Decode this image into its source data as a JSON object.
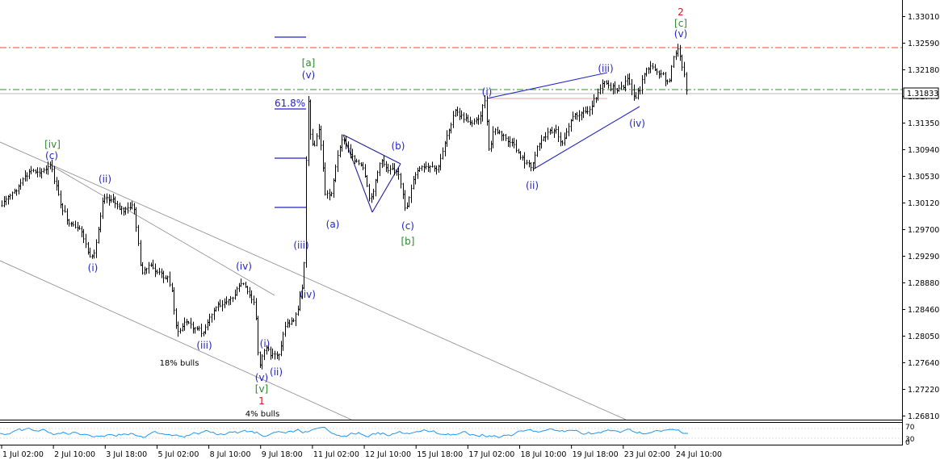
{
  "chart_data": {
    "type": "candlestick",
    "title": "",
    "main_panel": {
      "y_axis_ticks": [
        "1.33010",
        "1.32590",
        "1.32180",
        "1.31770",
        "1.31350",
        "1.30940",
        "1.30530",
        "1.30120",
        "1.29700",
        "1.29290",
        "1.28880",
        "1.28460",
        "1.28050",
        "1.27640",
        "1.27220",
        "1.26810"
      ],
      "ylim": [
        1.2681,
        1.3342
      ],
      "current_price": "1.31833",
      "horizontal_levels": [
        {
          "value": 1.3256,
          "style": "dash-dot",
          "color": "#ff4a1f"
        },
        {
          "value": 1.3198,
          "style": "dash-dot",
          "color": "#1d9a1d"
        }
      ],
      "annotations": [
        {
          "text": "2",
          "color": "#cc1f1f"
        },
        {
          "text": "[c]",
          "color": "#2a8a2a"
        },
        {
          "text": "(v)",
          "color": "#2323c8"
        },
        {
          "text": "[a]",
          "color": "#2a8a2a"
        },
        {
          "text": "(v)",
          "color": "#2323c8"
        },
        {
          "text": "61.8%",
          "color": "#2323c8"
        },
        {
          "text": "[iv]",
          "color": "#2a8a2a"
        },
        {
          "text": "(c)",
          "color": "#2323c8"
        },
        {
          "text": "(ii)",
          "color": "#2323c8"
        },
        {
          "text": "(i)",
          "color": "#2323c8"
        },
        {
          "text": "(iv)",
          "color": "#2323c8"
        },
        {
          "text": "(iii)",
          "color": "#2323c8"
        },
        {
          "text": "18% bulls",
          "color": "#000000"
        },
        {
          "text": "(i)",
          "color": "#2323c8"
        },
        {
          "text": "(ii)",
          "color": "#2323c8"
        },
        {
          "text": "(v)",
          "color": "#2323c8"
        },
        {
          "text": "[v]",
          "color": "#2a8a2a"
        },
        {
          "text": "1",
          "color": "#cc1f1f"
        },
        {
          "text": "4% bulls",
          "color": "#000000"
        },
        {
          "text": "(iii)",
          "color": "#2323c8"
        },
        {
          "text": "(iv)",
          "color": "#2323c8"
        },
        {
          "text": "(a)",
          "color": "#2323c8"
        },
        {
          "text": "(b)",
          "color": "#2323c8"
        },
        {
          "text": "(c)",
          "color": "#2323c8"
        },
        {
          "text": "[b]",
          "color": "#2a8a2a"
        },
        {
          "text": "(i)",
          "color": "#2323c8"
        },
        {
          "text": "(ii)",
          "color": "#2323c8"
        },
        {
          "text": "(iii)",
          "color": "#2323c8"
        },
        {
          "text": "(iv)",
          "color": "#2323c8"
        }
      ]
    },
    "oscillator_panel": {
      "y_axis_ticks": [
        "70",
        "30",
        "0"
      ]
    },
    "x_axis_ticks": [
      "1 Jul 02:00",
      "2 Jul 10:00",
      "3 Jul 18:00",
      "5 Jul 02:00",
      "8 Jul 10:00",
      "9 Jul 18:00",
      "11 Jul 02:00",
      "12 Jul 10:00",
      "15 Jul 18:00",
      "17 Jul 02:00",
      "18 Jul 10:00",
      "19 Jul 18:00",
      "23 Jul 02:00",
      "24 Jul 10:00"
    ],
    "grid": false,
    "colors": {
      "candles": "#000000",
      "oscillator": "#2196f3",
      "elliott_labels": "#2323c8",
      "major_labels": "#cc1f1f",
      "minor_labels": "#2a8a2a"
    }
  }
}
